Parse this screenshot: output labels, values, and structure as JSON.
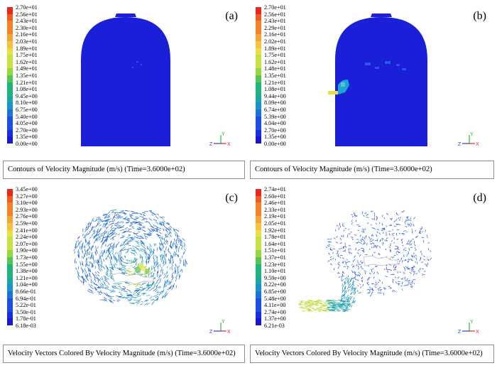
{
  "colormap": [
    "#e6261f",
    "#f05a1e",
    "#f5822a",
    "#f7a237",
    "#f4c23f",
    "#e9df45",
    "#c5e144",
    "#95d83e",
    "#57c44f",
    "#21b27d",
    "#1aa5a6",
    "#1a93c7",
    "#1c72d8",
    "#1b4fe0",
    "#1a2de0",
    "#1a18cf"
  ],
  "panels": [
    {
      "tag": "(a)",
      "legend": [
        "2.70e+01",
        "2.56e+01",
        "2.43e+01",
        "2.30e+01",
        "2.16e+01",
        "2.03e+01",
        "1.89e+01",
        "1.75e+01",
        "1.62e+01",
        "1.49e+01",
        "1.35e+01",
        "1.21e+01",
        "1.08e+01",
        "9.45e+00",
        "8.10e+00",
        "6.75e+00",
        "5.40e+00",
        "4.05e+00",
        "2.70e+00",
        "1.35e+00",
        "0.00e+00"
      ],
      "caption": "Contours of Velocity Magnitude (m/s) (Time=3.6000e+02)"
    },
    {
      "tag": "(b)",
      "legend": [
        "2.70e+01",
        "2.56e+01",
        "2.43e+01",
        "2.29e+01",
        "2.16e+01",
        "2.02e+01",
        "1.89e+01",
        "1.75e+01",
        "1.62e+01",
        "1.48e+01",
        "1.35e+01",
        "1.21e+01",
        "1.08e+01",
        "9.44e+00",
        "8.09e+00",
        "6.74e+00",
        "5.39e+00",
        "4.04e+00",
        "2.70e+00",
        "1.35e+00",
        "0.00e+00"
      ],
      "caption": "Contours of Velocity Magnitude (m/s) (Time=3.6000e+02)"
    },
    {
      "tag": "(c)",
      "legend": [
        "3.45e+00",
        "3.27e+00",
        "3.10e+00",
        "2.93e+00",
        "2.76e+00",
        "2.59e+00",
        "2.41e+00",
        "2.24e+00",
        "2.07e+00",
        "1.90e+00",
        "1.73e+00",
        "1.55e+00",
        "1.38e+00",
        "1.21e+00",
        "1.04e+00",
        "8.66e-01",
        "6.94e-01",
        "5.22e-01",
        "3.50e-01",
        "1.78e-01",
        "6.18e-03"
      ],
      "caption": "Velocity Vectors Colored By Velocity Magnitude (m/s) (Time=3.6000e+02)"
    },
    {
      "tag": "(d)",
      "legend": [
        "2.74e+01",
        "2.60e+01",
        "2.46e+01",
        "2.33e+01",
        "2.19e+01",
        "2.05e+01",
        "1.92e+01",
        "1.78e+01",
        "1.64e+01",
        "1.51e+01",
        "1.37e+01",
        "1.23e+01",
        "1.10e+01",
        "9.59e+00",
        "8.22e+00",
        "6.85e+00",
        "5.48e+00",
        "4.11e+00",
        "2.74e+00",
        "1.37e+00",
        "6.21e-03"
      ],
      "caption": "Velocity Vectors Colored By Velocity Magnitude (m/s) (Time=3.6000e+02)"
    }
  ],
  "axis_labels": {
    "x": "X",
    "y": "Y",
    "z": "Z"
  }
}
